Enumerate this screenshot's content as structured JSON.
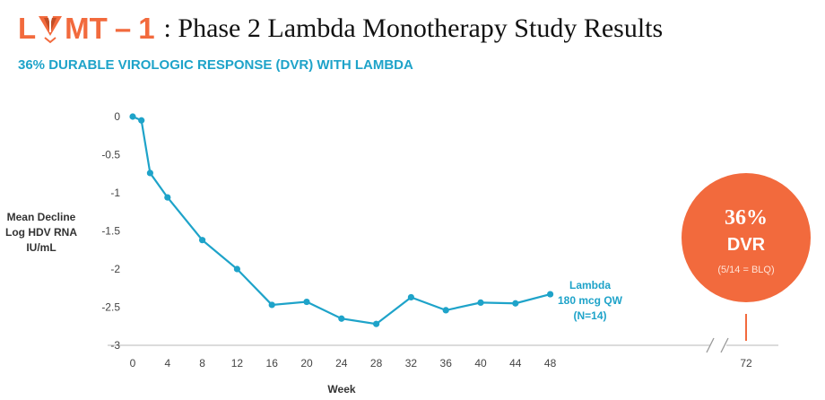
{
  "header": {
    "logo_text_left": "L",
    "logo_text_right": "MT",
    "logo_dash": "–",
    "logo_number": "1",
    "title": ": Phase 2 Lambda Monotherapy Study Results"
  },
  "subtitle": "36% DURABLE VIROLOGIC RESPONSE (DVR) WITH LAMBDA",
  "colors": {
    "accent_orange": "#f26a3d",
    "line_blue": "#1ea3c9",
    "title_blue": "#1ea3c9"
  },
  "callout": {
    "percent": "36%",
    "label": "DVR",
    "detail": "(5/14 = BLQ)"
  },
  "chart_data": {
    "type": "line",
    "title": "",
    "xlabel": "Week",
    "ylabel_lines": [
      "Mean Decline",
      "Log HDV RNA",
      "IU/mL"
    ],
    "x_ticks": [
      "0",
      "4",
      "8",
      "12",
      "16",
      "20",
      "24",
      "28",
      "32",
      "36",
      "40",
      "44",
      "48",
      "72"
    ],
    "y_ticks": [
      "0",
      "-0.5",
      "-1",
      "-1.5",
      "-2",
      "-2.5",
      "-3"
    ],
    "ylim": [
      -3,
      0
    ],
    "x_break": [
      48,
      72
    ],
    "series": [
      {
        "name": "Lambda 180 mcg QW (N=14)",
        "label_lines": [
          "Lambda",
          "180 mcg QW",
          "(N=14)"
        ],
        "x": [
          0,
          1,
          2,
          4,
          8,
          12,
          16,
          20,
          24,
          28,
          32,
          36,
          40,
          44,
          48
        ],
        "values": [
          0,
          -0.05,
          -0.74,
          -1.06,
          -1.62,
          -2.0,
          -2.47,
          -2.43,
          -2.65,
          -2.72,
          -2.37,
          -2.54,
          -2.44,
          -2.45,
          -2.33
        ]
      }
    ],
    "marker_x": 72
  }
}
